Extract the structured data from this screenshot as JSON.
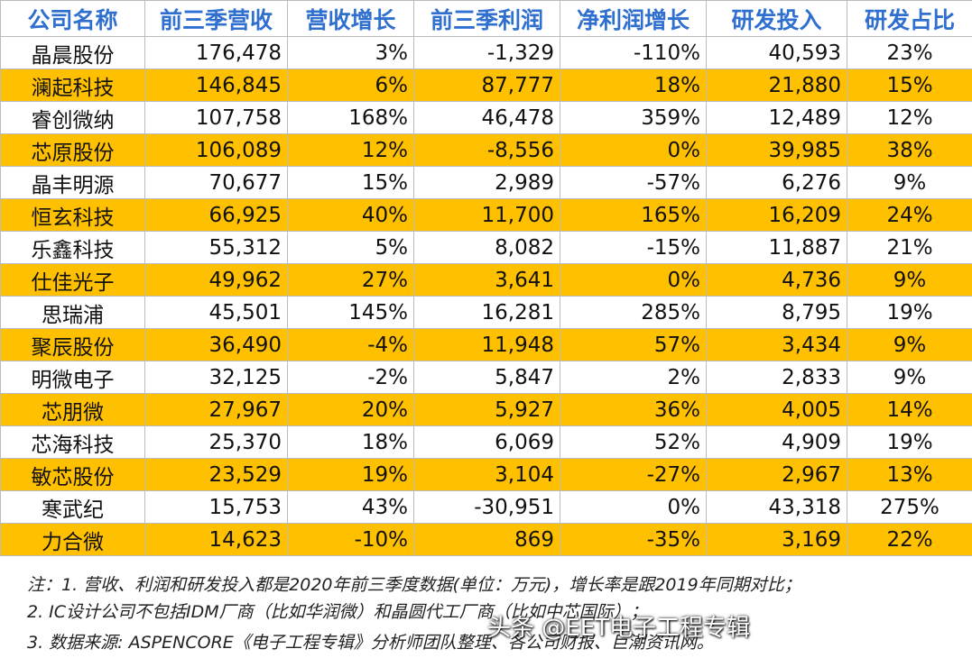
{
  "table": {
    "header": [
      "公司名称",
      "前三季营收",
      "营收增长",
      "前三季利润",
      "净利润增长",
      "研发投入",
      "研发占比"
    ],
    "rows": [
      [
        "晶晨股份",
        "176,478",
        "3%",
        "-1,329",
        "-110%",
        "40,593",
        "23%"
      ],
      [
        "澜起科技",
        "146,845",
        "6%",
        "87,777",
        "18%",
        "21,880",
        "15%"
      ],
      [
        "睿创微纳",
        "107,758",
        "168%",
        "46,478",
        "359%",
        "12,489",
        "12%"
      ],
      [
        "芯原股份",
        "106,089",
        "12%",
        "-8,556",
        "0%",
        "39,985",
        "38%"
      ],
      [
        "晶丰明源",
        "70,677",
        "15%",
        "2,989",
        "-57%",
        "6,276",
        "9%"
      ],
      [
        "恒玄科技",
        "66,925",
        "40%",
        "11,700",
        "165%",
        "16,209",
        "24%"
      ],
      [
        "乐鑫科技",
        "55,312",
        "5%",
        "8,082",
        "-15%",
        "11,887",
        "21%"
      ],
      [
        "仕佳光子",
        "49,962",
        "27%",
        "3,641",
        "0%",
        "4,736",
        "9%"
      ],
      [
        "思瑞浦",
        "45,501",
        "145%",
        "16,281",
        "285%",
        "8,795",
        "19%"
      ],
      [
        "聚辰股份",
        "36,490",
        "-4%",
        "11,948",
        "57%",
        "3,434",
        "9%"
      ],
      [
        "明微电子",
        "32,125",
        "-2%",
        "5,847",
        "2%",
        "2,833",
        "9%"
      ],
      [
        "芯朋微",
        "27,967",
        "20%",
        "5,927",
        "36%",
        "4,005",
        "14%"
      ],
      [
        "芯海科技",
        "25,370",
        "18%",
        "6,069",
        "52%",
        "4,909",
        "19%"
      ],
      [
        "敏芯股份",
        "23,529",
        "19%",
        "3,104",
        "-27%",
        "2,967",
        "13%"
      ],
      [
        "寒武纪",
        "15,753",
        "43%",
        "-30,951",
        "0%",
        "43,318",
        "275%"
      ],
      [
        "力合微",
        "14,623",
        "-10%",
        "869",
        "-35%",
        "3,169",
        "22%"
      ]
    ]
  },
  "notes": [
    "注：1. 营收、利润和研发投入都是2020年前三季度数据(单位：万元)，增长率是跟2019年同期对比；",
    "2. IC设计公司不包括IDM厂商（比如华润微）和晶圆代工厂商（比如中芯国际）；",
    "3. 数据来源: ASPENCORE《电子工程专辑》分析师团队整理、各公司财报、巨潮资讯网。"
  ],
  "watermark": "头条 @EET电子工程专辑"
}
